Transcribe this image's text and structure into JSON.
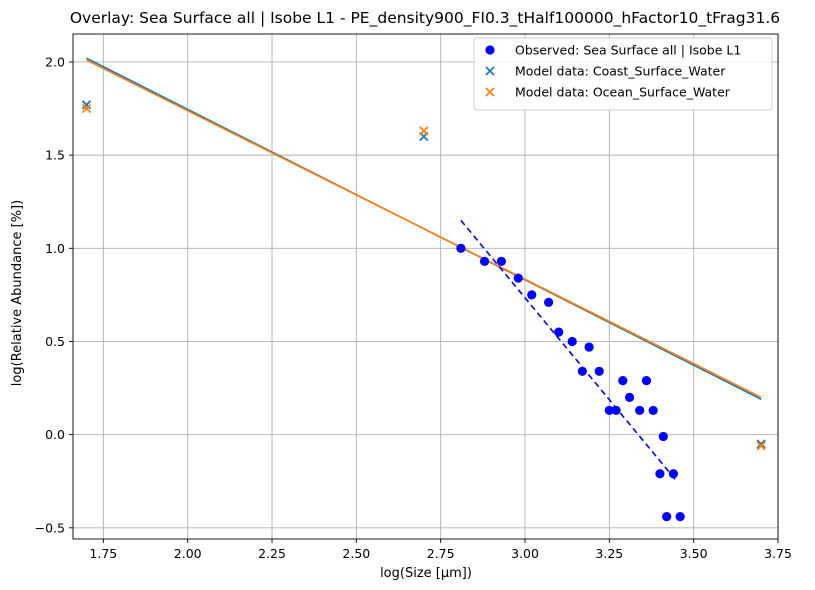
{
  "chart_data": {
    "type": "scatter",
    "title": "Overlay: Sea Surface all | Isobe L1 - PE_density900_FI0.3_tHalf100000_hFactor10_tFrag31.6",
    "xlabel": "log(Size [µm])",
    "ylabel": "log(Relative Abundance [%])",
    "xlim": [
      1.66,
      3.75
    ],
    "ylim": [
      -0.56,
      2.15
    ],
    "grid": true,
    "legend_position": "top-right",
    "x_ticks": [
      {
        "value": 1.75,
        "label": "1.75"
      },
      {
        "value": 2.0,
        "label": "2.00"
      },
      {
        "value": 2.25,
        "label": "2.25"
      },
      {
        "value": 2.5,
        "label": "2.50"
      },
      {
        "value": 2.75,
        "label": "2.75"
      },
      {
        "value": 3.0,
        "label": "3.00"
      },
      {
        "value": 3.25,
        "label": "3.25"
      },
      {
        "value": 3.5,
        "label": "3.50"
      },
      {
        "value": 3.75,
        "label": "3.75"
      }
    ],
    "y_ticks": [
      {
        "value": -0.5,
        "label": "−0.5"
      },
      {
        "value": 0.0,
        "label": "0.0"
      },
      {
        "value": 0.5,
        "label": "0.5"
      },
      {
        "value": 1.0,
        "label": "1.0"
      },
      {
        "value": 1.5,
        "label": "1.5"
      },
      {
        "value": 2.0,
        "label": "2.0"
      }
    ],
    "series": [
      {
        "name": "Observed: Sea Surface all | Isobe L1",
        "kind": "scatter-circle",
        "color": "#0000ff",
        "points": [
          [
            2.81,
            1.0
          ],
          [
            2.88,
            0.93
          ],
          [
            2.93,
            0.93
          ],
          [
            2.98,
            0.84
          ],
          [
            3.02,
            0.75
          ],
          [
            3.07,
            0.71
          ],
          [
            3.1,
            0.55
          ],
          [
            3.14,
            0.5
          ],
          [
            3.17,
            0.34
          ],
          [
            3.19,
            0.47
          ],
          [
            3.22,
            0.34
          ],
          [
            3.25,
            0.13
          ],
          [
            3.27,
            0.13
          ],
          [
            3.29,
            0.29
          ],
          [
            3.31,
            0.2
          ],
          [
            3.34,
            0.13
          ],
          [
            3.36,
            0.29
          ],
          [
            3.38,
            0.13
          ],
          [
            3.4,
            -0.21
          ],
          [
            3.41,
            -0.01
          ],
          [
            3.42,
            -0.44
          ],
          [
            3.44,
            -0.21
          ],
          [
            3.46,
            -0.44
          ]
        ]
      },
      {
        "name": "Model data: Coast_Surface_Water",
        "kind": "scatter-x",
        "color": "#1f77b4",
        "points": [
          [
            1.7,
            1.77
          ],
          [
            2.7,
            1.6
          ],
          [
            3.7,
            -0.05
          ]
        ]
      },
      {
        "name": "Model data: Ocean_Surface_Water",
        "kind": "scatter-x",
        "color": "#ff7f0e",
        "points": [
          [
            1.7,
            1.75
          ],
          [
            2.7,
            1.63
          ],
          [
            3.7,
            -0.06
          ]
        ]
      }
    ],
    "fit_lines": [
      {
        "color": "#1f77b4",
        "style": "solid",
        "points": [
          [
            1.7,
            2.02
          ],
          [
            3.7,
            0.19
          ]
        ]
      },
      {
        "color": "#ff7f0e",
        "style": "solid",
        "points": [
          [
            1.7,
            2.01
          ],
          [
            3.7,
            0.2
          ]
        ]
      },
      {
        "color": "#0000ff",
        "style": "dashed",
        "points": [
          [
            2.81,
            1.15
          ],
          [
            3.45,
            -0.25
          ]
        ]
      }
    ]
  }
}
